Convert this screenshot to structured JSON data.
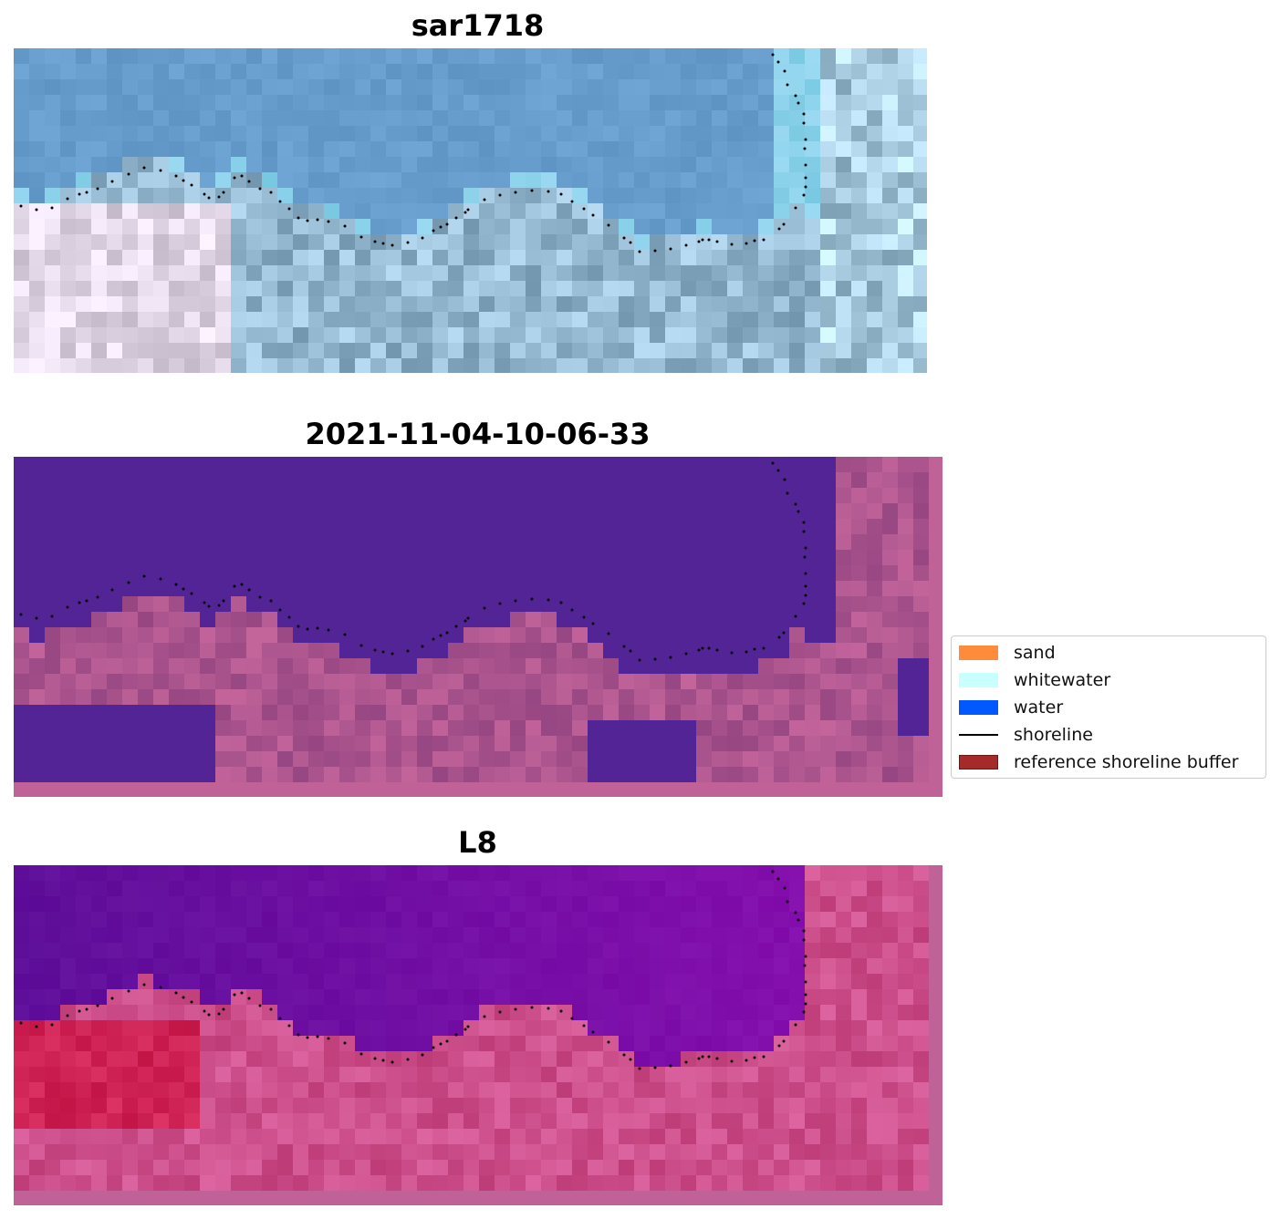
{
  "panels": [
    {
      "title": "sar1718"
    },
    {
      "title": "2021-11-04-10-06-33"
    },
    {
      "title": "L8"
    }
  ],
  "legend": {
    "items": [
      {
        "label": "sand",
        "color": "#ff8c3a",
        "kind": "patch"
      },
      {
        "label": "whitewater",
        "color": "#c8ffff",
        "kind": "patch"
      },
      {
        "label": "water",
        "color": "#0059ff",
        "kind": "patch"
      },
      {
        "label": "shoreline",
        "color": "#000000",
        "kind": "line"
      },
      {
        "label": "reference shoreline buffer",
        "color": "#a52a2a",
        "kind": "patch-outlined"
      }
    ]
  },
  "colors": {
    "sar_water": "#6496c3",
    "class_water": "#532496",
    "class_land": "#9a4f8e",
    "class_border": "#c06298",
    "index_water": "#6a1a9c",
    "index_land": "#cf4a7e",
    "shoreline_dots": "#000000"
  }
}
